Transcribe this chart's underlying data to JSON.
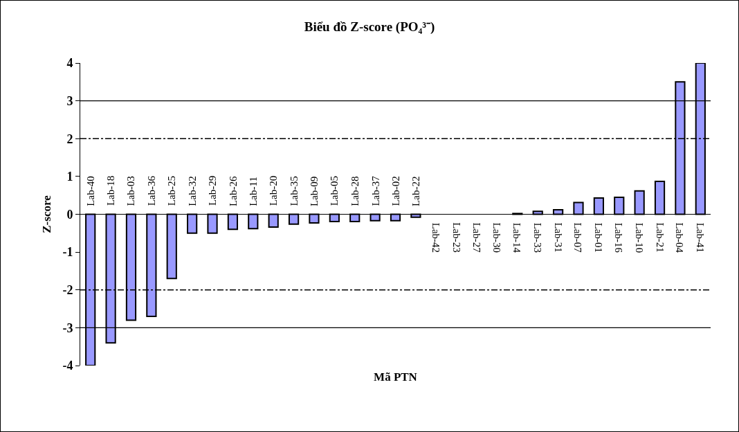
{
  "chart_data": {
    "type": "bar",
    "title": "Biểu đồ Z-score (PO₄³⁻)",
    "xlabel": "Mã PTN",
    "ylabel": "Z-score",
    "categories": [
      "Lab-40",
      "Lab-18",
      "Lab-03",
      "Lab-36",
      "Lab-25",
      "Lab-32",
      "Lab-29",
      "Lab-26",
      "Lab-11",
      "Lab-20",
      "Lab-35",
      "Lab-09",
      "Lab-05",
      "Lab-28",
      "Lab-37",
      "Lab-02",
      "Lab-22",
      "Lab-42",
      "Lab-23",
      "Lab-27",
      "Lab-30",
      "Lab-14",
      "Lab-33",
      "Lab-31",
      "Lab-07",
      "Lab-01",
      "Lab-16",
      "Lab-10",
      "Lab-21",
      "Lab-04",
      "Lab-41"
    ],
    "values": [
      -4,
      -3.4,
      -2.8,
      -2.7,
      -1.7,
      -0.5,
      -0.5,
      -0.4,
      -0.38,
      -0.34,
      -0.26,
      -0.23,
      -0.19,
      -0.19,
      -0.17,
      -0.17,
      -0.08,
      0,
      0,
      0,
      0,
      0.02,
      0.08,
      0.12,
      0.31,
      0.43,
      0.45,
      0.62,
      0.87,
      3.5,
      4
    ],
    "color": "#9999ff",
    "ylim": [
      -4,
      4
    ],
    "yticks": [
      -4,
      -3,
      -2,
      -1,
      0,
      1,
      2,
      3,
      4
    ],
    "ref_lines": [
      {
        "axis": "y",
        "value": 3,
        "line_style": "solid"
      },
      {
        "axis": "y",
        "value": -3,
        "line_style": "solid"
      },
      {
        "axis": "y",
        "value": 2,
        "line_style": "dashed"
      },
      {
        "axis": "y",
        "value": -2,
        "line_style": "dashed"
      }
    ]
  }
}
